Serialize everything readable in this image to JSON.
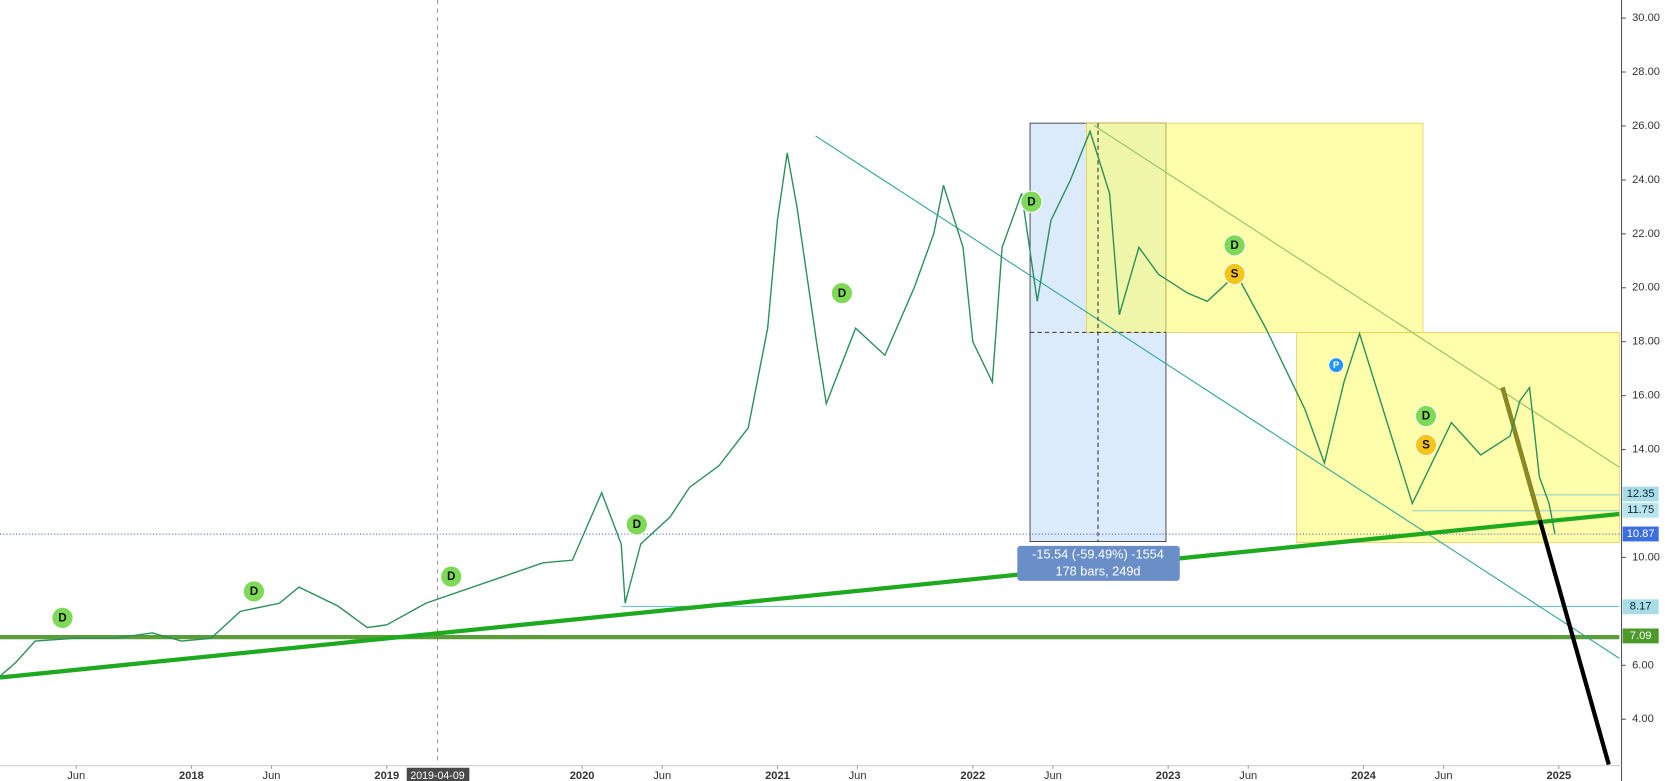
{
  "chart_data": {
    "type": "line",
    "x": [
      2017.02,
      2017.1,
      2017.2,
      2017.4,
      2017.6,
      2017.8,
      2017.95,
      2018.1,
      2018.25,
      2018.45,
      2018.55,
      2018.75,
      2018.9,
      2019.0,
      2019.2,
      2019.4,
      2019.6,
      2019.8,
      2019.95,
      2020.1,
      2020.2,
      2020.22,
      2020.3,
      2020.45,
      2020.55,
      2020.7,
      2020.85,
      2020.95,
      2021.0,
      2021.05,
      2021.1,
      2021.2,
      2021.25,
      2021.4,
      2021.55,
      2021.7,
      2021.8,
      2021.85,
      2021.95,
      2022.0,
      2022.1,
      2022.15,
      2022.25,
      2022.33,
      2022.4,
      2022.5,
      2022.6,
      2022.7,
      2022.75,
      2022.85,
      2022.95,
      2023.1,
      2023.2,
      2023.35,
      2023.5,
      2023.6,
      2023.7,
      2023.8,
      2023.9,
      2023.98,
      2024.1,
      2024.25,
      2024.35,
      2024.45,
      2024.6,
      2024.75,
      2024.8,
      2024.85,
      2024.9,
      2024.95,
      2024.98
    ],
    "series": [
      {
        "color": "#2a8f5a",
        "values": [
          5.6,
          6.1,
          6.9,
          7.0,
          7.0,
          7.2,
          6.9,
          7.0,
          8.0,
          8.3,
          8.9,
          8.2,
          7.4,
          7.5,
          8.3,
          8.8,
          9.3,
          9.8,
          9.9,
          12.4,
          10.5,
          8.3,
          10.5,
          11.5,
          12.6,
          13.4,
          14.8,
          18.5,
          22.5,
          25.0,
          23.0,
          18.0,
          15.7,
          18.5,
          17.5,
          20.0,
          22.0,
          23.8,
          21.5,
          18.0,
          16.5,
          21.5,
          23.5,
          19.5,
          22.5,
          24.0,
          25.8,
          23.5,
          19.0,
          21.5,
          20.5,
          19.8,
          19.5,
          20.5,
          18.5,
          17.0,
          15.5,
          13.5,
          16.5,
          18.3,
          15.5,
          12.0,
          13.5,
          15.0,
          13.8,
          14.5,
          15.8,
          16.3,
          13.0,
          12.0,
          10.87
        ]
      }
    ],
    "xlim": [
      2017.02,
      2025.31
    ],
    "ylim": [
      2.32,
      30.67
    ],
    "xticks": [
      {
        "value": 2017.41,
        "label": "Jun"
      },
      {
        "value": 2018,
        "label": "2018"
      },
      {
        "value": 2018.41,
        "label": "Jun"
      },
      {
        "value": 2019,
        "label": "2019"
      },
      {
        "value": 2020,
        "label": "2020"
      },
      {
        "value": 2020.41,
        "label": "Jun"
      },
      {
        "value": 2021,
        "label": "2021"
      },
      {
        "value": 2021.41,
        "label": "Jun"
      },
      {
        "value": 2022,
        "label": "2022"
      },
      {
        "value": 2022.41,
        "label": "Jun"
      },
      {
        "value": 2023,
        "label": "2023"
      },
      {
        "value": 2023.41,
        "label": "Jun"
      },
      {
        "value": 2024,
        "label": "2024"
      },
      {
        "value": 2024.41,
        "label": "Jun"
      },
      {
        "value": 2025,
        "label": "2025"
      }
    ],
    "yticks": [
      {
        "value": 4,
        "label": "4.00"
      },
      {
        "value": 6,
        "label": "6.00"
      },
      {
        "value": 10,
        "label": "10.00"
      },
      {
        "value": 14,
        "label": "14.00"
      },
      {
        "value": 16,
        "label": "16.00"
      },
      {
        "value": 18,
        "label": "18.00"
      },
      {
        "value": 20,
        "label": "20.00"
      },
      {
        "value": 22,
        "label": "22.00"
      },
      {
        "value": 24,
        "label": "24.00"
      },
      {
        "value": 26,
        "label": "26.00"
      },
      {
        "value": 28,
        "label": "28.00"
      },
      {
        "value": 30,
        "label": "30.00"
      }
    ],
    "price_labels": [
      {
        "value": 12.35,
        "label": "12.35",
        "color": "#a8dde8"
      },
      {
        "value": 11.75,
        "label": "11.75",
        "color": "#b8e6ef"
      },
      {
        "value": 10.87,
        "label": "10.87",
        "color": "#3d6ee0"
      },
      {
        "value": 8.17,
        "label": "8.17",
        "color": "#a8dde8"
      },
      {
        "value": 7.09,
        "label": "7.09",
        "color": "#4c9a2a"
      }
    ],
    "markers": [
      {
        "label": "D",
        "x": 2017.34,
        "y": 7.76,
        "color": "#7ed957"
      },
      {
        "label": "D",
        "x": 2018.32,
        "y": 8.74,
        "color": "#7ed957"
      },
      {
        "label": "D",
        "x": 2019.33,
        "y": 9.29,
        "color": "#7ed957"
      },
      {
        "label": "D",
        "x": 2020.28,
        "y": 11.22,
        "color": "#7ed957"
      },
      {
        "label": "D",
        "x": 2021.33,
        "y": 19.8,
        "color": "#7ed957"
      },
      {
        "label": "D",
        "x": 2022.3,
        "y": 23.19,
        "color": "#7ed957"
      },
      {
        "label": "D",
        "x": 2023.34,
        "y": 21.57,
        "color": "#7ed957"
      },
      {
        "label": "D",
        "x": 2024.32,
        "y": 15.24,
        "color": "#7ed957"
      },
      {
        "label": "S",
        "x": 2023.34,
        "y": 20.51,
        "color": "#f5c518"
      },
      {
        "label": "S",
        "x": 2024.32,
        "y": 14.17,
        "color": "#f5c518"
      },
      {
        "label": "P",
        "x": 2023.86,
        "y": 17.13,
        "color": "#2196f3"
      }
    ],
    "crosshair_label": "2019-04-09",
    "measure_text": "-15.54 (-59.49%) -1554",
    "measure_subtext": "178 bars, 249d"
  }
}
